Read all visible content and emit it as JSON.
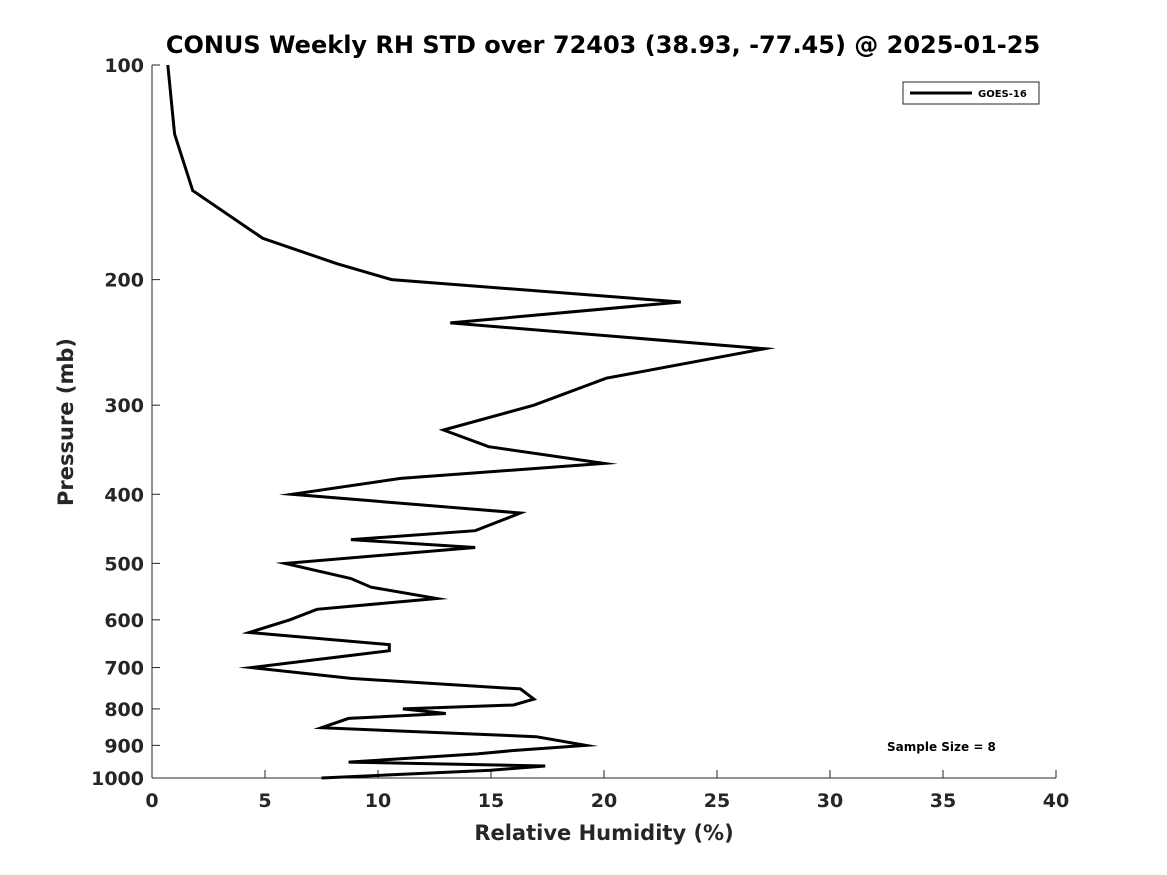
{
  "chart_data": {
    "type": "line",
    "title": "CONUS Weekly RH STD over 72403 (38.93, -77.45) @ 2025-01-25",
    "xlabel": "Relative Humidity (%)",
    "ylabel": "Pressure (mb)",
    "xlim": [
      0,
      40
    ],
    "ylim": [
      100,
      1000
    ],
    "yscale": "log",
    "y_reversed": true,
    "x_ticks": [
      0,
      5,
      10,
      15,
      20,
      25,
      30,
      35,
      40
    ],
    "x_tick_labels": [
      "0",
      "5",
      "10",
      "15",
      "20",
      "25",
      "30",
      "35",
      "40"
    ],
    "y_ticks": [
      100,
      200,
      300,
      400,
      500,
      600,
      700,
      800,
      900,
      1000
    ],
    "y_tick_labels": [
      "100",
      "200",
      "300",
      "400",
      "500",
      "600",
      "700",
      "800",
      "900",
      "1000"
    ],
    "grid": false,
    "legend_position": "top-right",
    "annotation": "Sample Size = 8",
    "series": [
      {
        "name": "GOES-16",
        "color": "#000000",
        "points": [
          [
            0.7,
            100
          ],
          [
            1.0,
            125
          ],
          [
            1.8,
            150
          ],
          [
            4.9,
            175
          ],
          [
            8.2,
            190
          ],
          [
            10.6,
            200
          ],
          [
            23.4,
            215
          ],
          [
            13.2,
            230
          ],
          [
            27.1,
            250
          ],
          [
            20.1,
            275
          ],
          [
            16.9,
            300
          ],
          [
            12.9,
            325
          ],
          [
            14.9,
            343
          ],
          [
            20.0,
            362
          ],
          [
            11.0,
            380
          ],
          [
            6.2,
            400
          ],
          [
            16.3,
            425
          ],
          [
            14.3,
            450
          ],
          [
            8.8,
            463
          ],
          [
            14.3,
            475
          ],
          [
            5.9,
            500
          ],
          [
            8.8,
            525
          ],
          [
            9.7,
            540
          ],
          [
            12.6,
            560
          ],
          [
            7.3,
            580
          ],
          [
            6.1,
            600
          ],
          [
            4.3,
            625
          ],
          [
            10.5,
            650
          ],
          [
            10.5,
            663
          ],
          [
            8.5,
            675
          ],
          [
            4.4,
            700
          ],
          [
            8.8,
            725
          ],
          [
            16.3,
            750
          ],
          [
            16.9,
            775
          ],
          [
            16.0,
            790
          ],
          [
            11.1,
            800
          ],
          [
            13.0,
            812
          ],
          [
            8.7,
            825
          ],
          [
            7.5,
            850
          ],
          [
            17.0,
            875
          ],
          [
            19.2,
            900
          ],
          [
            16.0,
            915
          ],
          [
            14.4,
            925
          ],
          [
            8.7,
            950
          ],
          [
            17.4,
            962
          ],
          [
            15.0,
            975
          ],
          [
            7.5,
            1000
          ]
        ]
      }
    ]
  }
}
